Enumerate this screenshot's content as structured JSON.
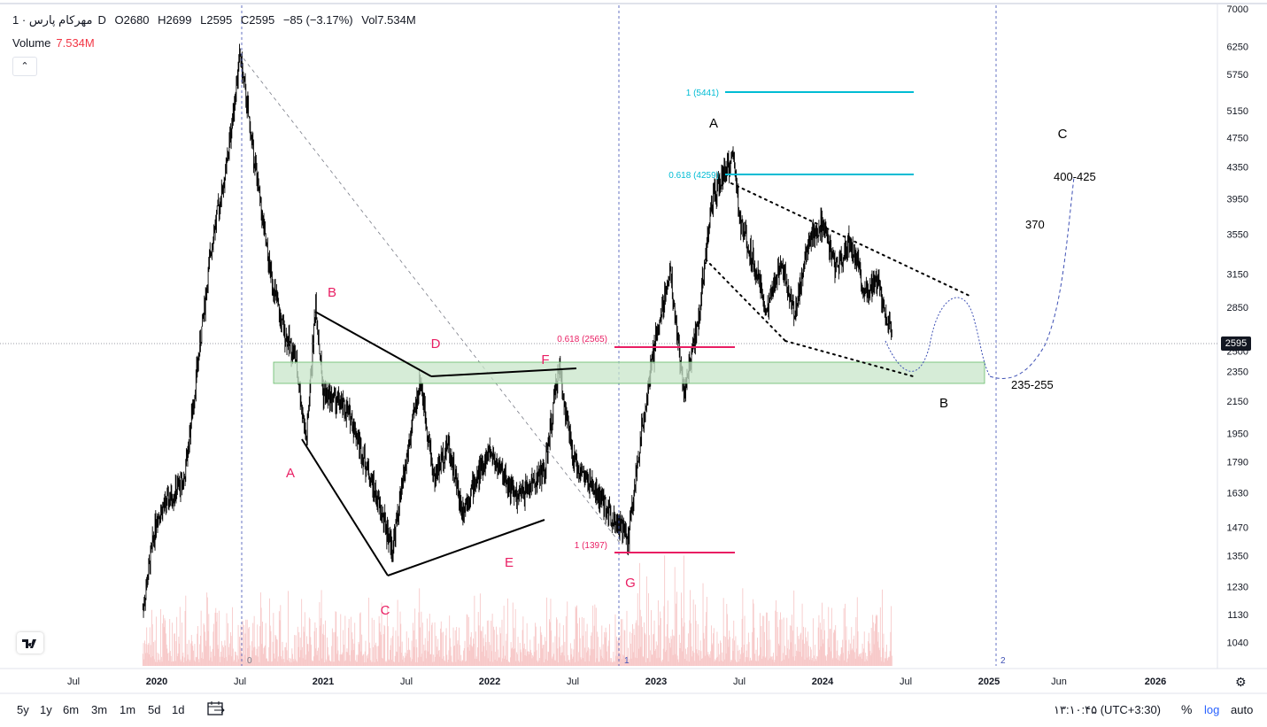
{
  "header": {
    "symbol": "مهرکام پارس",
    "interval": "· 1D",
    "open": "O2680",
    "high": "H2699",
    "low": "L2595",
    "close": "C2595",
    "change": "−85 (−3.17%)",
    "volume_short": "Vol7.534M"
  },
  "volume_row": {
    "label": "Volume",
    "value": "7.534M"
  },
  "collapse_icon": "chevron-up-icon",
  "price_tag": "2595",
  "colors": {
    "candle": "#000000",
    "volume_bars": "#f7c9c9",
    "zone_fill": "#c8e6c9",
    "zone_stroke": "#66bb6a",
    "fib_cyan": "#00bcd4",
    "fib_magenta": "#e91e63",
    "wave_label_red": "#e91e63",
    "projection": "#3f51b5"
  },
  "chart_data": {
    "type": "candlestick",
    "scale": "log",
    "ylim": [
      1000,
      7000
    ],
    "y_ticks": [
      7000,
      6250,
      5750,
      5150,
      4750,
      4350,
      3950,
      3550,
      3150,
      2850,
      2500,
      2350,
      2150,
      1950,
      1790,
      1630,
      1470,
      1350,
      1230,
      1130,
      1040
    ],
    "x_ticks": [
      "Jul",
      "2020",
      "Jul",
      "2021",
      "Jul",
      "2022",
      "Jul",
      "2023",
      "Jul",
      "2024",
      "Jul",
      "2025",
      "Jun",
      "2026"
    ],
    "last_price": 2595,
    "price_path": [
      [
        "2019-07",
        1040
      ],
      [
        "2019-12",
        1150
      ],
      [
        "2020-01",
        1520
      ],
      [
        "2020-03",
        1700
      ],
      [
        "2020-05",
        3500
      ],
      [
        "2020-06",
        4300
      ],
      [
        "2020-07",
        6100
      ],
      [
        "2020-08",
        4500
      ],
      [
        "2020-09",
        3300
      ],
      [
        "2020-10",
        2700
      ],
      [
        "2020-11",
        2450
      ],
      [
        "2020-11-25",
        1900
      ],
      [
        "2020-12-15",
        2900
      ],
      [
        "2021-01",
        2200
      ],
      [
        "2021-02",
        2150
      ],
      [
        "2021-03",
        2050
      ],
      [
        "2021-06",
        1380
      ],
      [
        "2021-07",
        1800
      ],
      [
        "2021-08",
        2300
      ],
      [
        "2021-09",
        1700
      ],
      [
        "2021-10",
        1900
      ],
      [
        "2021-11",
        1550
      ],
      [
        "2022-01",
        1850
      ],
      [
        "2022-03",
        1600
      ],
      [
        "2022-05",
        1750
      ],
      [
        "2022-06",
        2400
      ],
      [
        "2022-07",
        1800
      ],
      [
        "2022-09",
        1600
      ],
      [
        "2022-11",
        1420
      ],
      [
        "2022-12",
        2000
      ],
      [
        "2023-01",
        2600
      ],
      [
        "2023-02",
        3200
      ],
      [
        "2023-03",
        2200
      ],
      [
        "2023-04",
        2700
      ],
      [
        "2023-05",
        3900
      ],
      [
        "2023-06",
        4300
      ],
      [
        "2023-06-20",
        4480
      ],
      [
        "2023-07",
        3700
      ],
      [
        "2023-08",
        3300
      ],
      [
        "2023-09",
        2800
      ],
      [
        "2023-10",
        3300
      ],
      [
        "2023-11",
        2800
      ],
      [
        "2023-12",
        3500
      ],
      [
        "2024-01",
        3650
      ],
      [
        "2024-02",
        3200
      ],
      [
        "2024-03",
        3500
      ],
      [
        "2024-04",
        3000
      ],
      [
        "2024-05",
        3100
      ],
      [
        "2024-06",
        2595
      ]
    ],
    "annotations": {
      "fib_levels": [
        {
          "label": "1 (5441)",
          "value": 5441
        },
        {
          "label": "0.618 (4259)",
          "value": 4259
        },
        {
          "label": "0.618 (2565)",
          "value": 2565
        },
        {
          "label": "1 (1397)",
          "value": 1397
        }
      ],
      "support_zone": [
        2350,
        2500
      ],
      "wave_labels_red": [
        "B",
        "A",
        "C",
        "D",
        "E",
        "F",
        "G"
      ],
      "wave_labels_black": [
        "A",
        "B",
        "C"
      ],
      "target_labels": [
        "400-425",
        "370",
        "235-255"
      ],
      "cycle_markers": [
        "0",
        "1",
        "2"
      ]
    }
  },
  "bottom": {
    "ranges": [
      "5y",
      "1y",
      "6m",
      "3m",
      "1m",
      "5d",
      "1d"
    ],
    "compare_icon": "calendar-range-icon",
    "time": "۱۳:۱۰:۴۵ (UTC+3:30)",
    "percent": "%",
    "log": "log",
    "auto": "auto",
    "settings_icon": "gear-icon"
  }
}
